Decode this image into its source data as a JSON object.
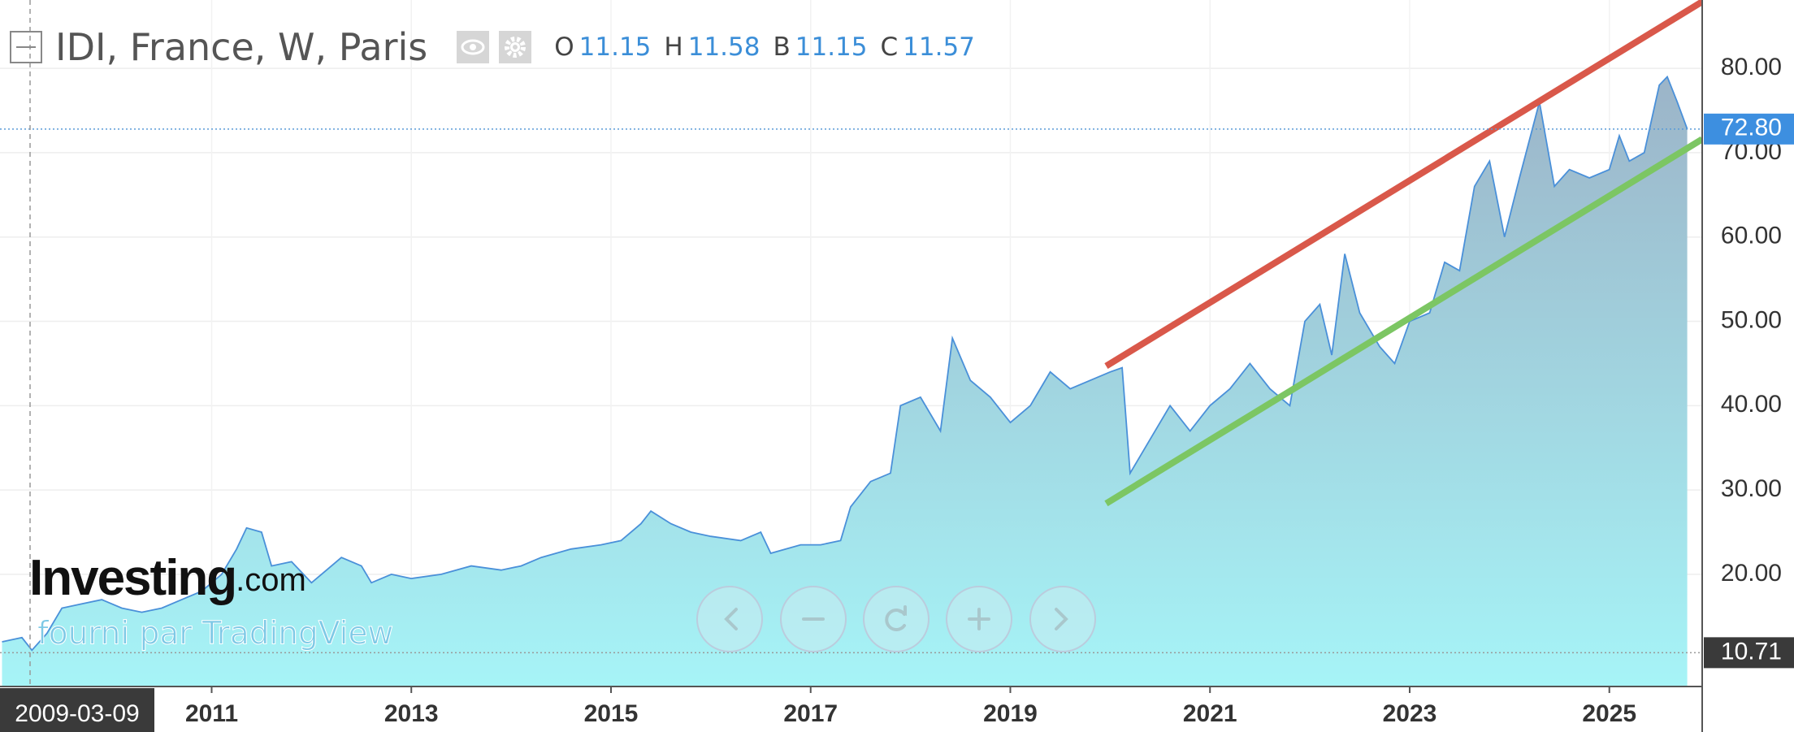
{
  "chart_data": {
    "type": "area",
    "title": "IDI, France, W, Paris",
    "ohlc": [
      {
        "key": "O",
        "value": "11.15"
      },
      {
        "key": "H",
        "value": "11.58"
      },
      {
        "key": "B",
        "value": "11.15"
      },
      {
        "key": "C",
        "value": "11.57"
      }
    ],
    "logo": "Investing",
    "logo_suffix": ".com",
    "provider": "fourni par TradingView",
    "crosshair_date": "2009-03-09",
    "color": "#4a90d9",
    "x": [
      2008.9,
      2009.1,
      2009.2,
      2009.35,
      2009.5,
      2009.7,
      2009.9,
      2010.1,
      2010.3,
      2010.5,
      2010.7,
      2010.9,
      2011.1,
      2011.25,
      2011.35,
      2011.5,
      2011.6,
      2011.8,
      2012.0,
      2012.1,
      2012.3,
      2012.5,
      2012.6,
      2012.8,
      2013.0,
      2013.3,
      2013.6,
      2013.9,
      2014.1,
      2014.3,
      2014.6,
      2014.9,
      2015.1,
      2015.3,
      2015.4,
      2015.6,
      2015.8,
      2016.0,
      2016.3,
      2016.5,
      2016.6,
      2016.9,
      2017.1,
      2017.3,
      2017.4,
      2017.6,
      2017.8,
      2017.9,
      2018.1,
      2018.3,
      2018.42,
      2018.6,
      2018.8,
      2019.0,
      2019.2,
      2019.4,
      2019.6,
      2019.8,
      2020.0,
      2020.12,
      2020.2,
      2020.4,
      2020.6,
      2020.8,
      2021.0,
      2021.2,
      2021.4,
      2021.6,
      2021.8,
      2021.95,
      2022.1,
      2022.22,
      2022.35,
      2022.5,
      2022.7,
      2022.85,
      2023.0,
      2023.2,
      2023.35,
      2023.5,
      2023.65,
      2023.8,
      2023.95,
      2024.1,
      2024.3,
      2024.45,
      2024.6,
      2024.8,
      2025.0,
      2025.1,
      2025.2,
      2025.35,
      2025.5,
      2025.58,
      2025.68,
      2025.78
    ],
    "values": [
      12,
      12.5,
      11,
      13,
      16,
      16.5,
      17,
      16,
      15.5,
      16,
      17,
      18,
      20,
      23,
      25.5,
      25,
      21,
      21.5,
      19,
      20,
      22,
      21,
      19,
      20,
      19.5,
      20,
      21,
      20.5,
      21,
      22,
      23,
      23.5,
      24,
      26,
      27.5,
      26,
      25,
      24.5,
      24,
      25,
      22.5,
      23.5,
      23.5,
      24,
      28,
      31,
      32,
      40,
      41,
      37,
      48,
      43,
      41,
      38,
      40,
      44,
      42,
      43,
      44,
      44.5,
      32,
      36,
      40,
      37,
      40,
      42,
      45,
      42,
      40,
      50,
      52,
      46,
      58,
      51,
      47,
      45,
      50,
      51,
      57,
      56,
      66,
      69,
      60,
      67,
      76,
      66,
      68,
      67,
      68,
      72,
      69,
      70,
      78,
      79,
      76,
      72.8
    ],
    "trend_lines": [
      {
        "color": "#d9584a",
        "x": [
          2019.96,
          2025.93
        ],
        "values": [
          44.7,
          87.9
        ]
      },
      {
        "color": "#7cc663",
        "x": [
          2019.96,
          2025.93
        ],
        "values": [
          28.4,
          71.6
        ]
      }
    ],
    "current_price": {
      "value": 72.8,
      "label": "72.80"
    },
    "low_price": {
      "value": 10.71,
      "label": "10.71"
    },
    "xlim": [
      2008.88,
      2025.93
    ],
    "ylim": [
      6.7,
      88.1
    ],
    "xticks": [
      2011,
      2013,
      2015,
      2017,
      2019,
      2021,
      2023,
      2025
    ],
    "yticks": [
      {
        "value": 20,
        "label": "20.00"
      },
      {
        "value": 30,
        "label": "30.00"
      },
      {
        "value": 40,
        "label": "40.00"
      },
      {
        "value": 50,
        "label": "50.00"
      },
      {
        "value": 60,
        "label": "60.00"
      },
      {
        "value": 70,
        "label": "70.00"
      },
      {
        "value": 80,
        "label": "80.00"
      }
    ],
    "grid": true
  }
}
